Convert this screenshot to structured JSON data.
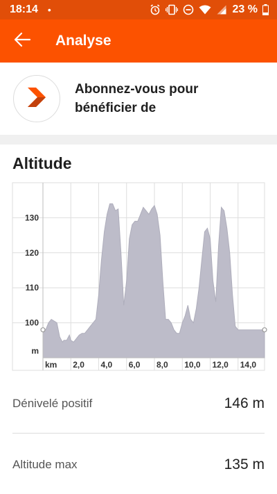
{
  "status_bar": {
    "time": "18:14",
    "dot": "•",
    "battery": "23 %",
    "icons": [
      "alarm-icon",
      "vibrate-icon",
      "do-not-disturb-icon",
      "wifi-icon",
      "signal-icon",
      "battery-icon"
    ]
  },
  "app_bar": {
    "title": "Analyse",
    "back_icon": "arrow-left-icon",
    "color": "#fc5200"
  },
  "promo": {
    "text": "Abonnez-vous pour bénéficier de",
    "logo_icon": "strava-chevron-icon"
  },
  "section": {
    "title": "Altitude"
  },
  "chart_data": {
    "type": "area",
    "ylabel": "m",
    "xlabel": "km",
    "y_ticks": [
      100,
      110,
      120,
      130
    ],
    "x_ticks": [
      "2,0",
      "4,0",
      "6,0",
      "8,0",
      "10,0",
      "12,0",
      "14,0"
    ],
    "x_tick_values": [
      2,
      4,
      6,
      8,
      10,
      12,
      14
    ],
    "xlim": [
      0,
      15.9
    ],
    "ylim": [
      90,
      140
    ],
    "grid": true,
    "fill_color": "#bdbcc9",
    "x": [
      0,
      0.2,
      0.4,
      0.6,
      0.8,
      1.0,
      1.2,
      1.4,
      1.5,
      1.7,
      1.9,
      2.0,
      2.2,
      2.4,
      2.6,
      2.8,
      3.0,
      3.2,
      3.4,
      3.6,
      3.8,
      4.0,
      4.2,
      4.4,
      4.6,
      4.8,
      5.0,
      5.2,
      5.4,
      5.6,
      5.8,
      6.0,
      6.2,
      6.4,
      6.6,
      6.8,
      7.0,
      7.2,
      7.4,
      7.6,
      7.8,
      8.0,
      8.2,
      8.4,
      8.6,
      8.8,
      9.0,
      9.2,
      9.4,
      9.6,
      9.8,
      10.0,
      10.2,
      10.4,
      10.6,
      10.8,
      11.0,
      11.2,
      11.4,
      11.6,
      11.8,
      12.0,
      12.2,
      12.4,
      12.6,
      12.8,
      13.0,
      13.2,
      13.4,
      13.6,
      13.8,
      14.0,
      14.2,
      14.4,
      14.6,
      14.8,
      15.0,
      15.2,
      15.4,
      15.6,
      15.9
    ],
    "y": [
      98,
      98,
      100,
      101,
      100.5,
      100,
      96,
      94.5,
      95,
      95,
      96.5,
      95,
      94.5,
      95.5,
      96.5,
      97,
      97,
      98,
      99,
      100,
      101,
      108,
      118,
      126,
      131,
      134,
      134,
      132,
      132.5,
      120,
      105,
      112,
      124,
      128,
      129,
      129,
      131,
      133,
      132,
      131,
      132.5,
      133.5,
      131,
      125,
      112,
      101,
      101,
      100,
      98,
      97,
      97,
      100,
      102,
      105,
      101,
      100,
      104,
      110,
      118,
      126,
      127,
      124,
      112,
      106,
      122,
      133,
      132,
      127,
      120,
      108,
      99,
      98,
      98,
      98,
      98,
      98,
      98,
      98,
      98,
      98,
      98
    ]
  },
  "stats": [
    {
      "label": "Dénivelé positif",
      "value": "146 m"
    },
    {
      "label": "Altitude max",
      "value": "135 m"
    }
  ]
}
